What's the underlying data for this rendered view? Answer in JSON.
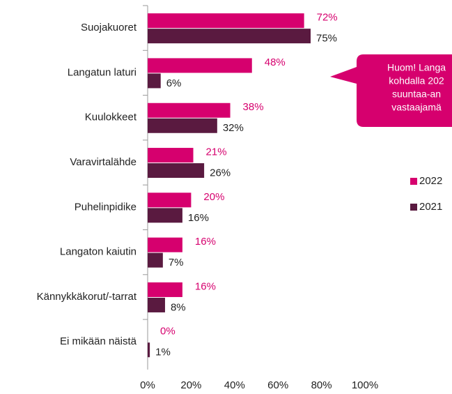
{
  "chart_data": {
    "type": "bar",
    "orientation": "horizontal",
    "categories": [
      "Suojakuoret",
      "Langatun laturi",
      "Kuulokkeet",
      "Varavirtalähde",
      "Puhelinpidike",
      "Langaton kaiutin",
      "Kännykkäkorut/-tarrat",
      "Ei mikään näistä"
    ],
    "series": [
      {
        "name": "2022",
        "color": "#d6006e",
        "values": [
          72,
          48,
          38,
          21,
          20,
          16,
          16,
          0
        ],
        "value_labels": [
          "72%",
          "48%",
          "38%",
          "21%",
          "20%",
          "16%",
          "16%",
          "0%"
        ]
      },
      {
        "name": "2021",
        "color": "#5a1a40",
        "values": [
          75,
          6,
          32,
          26,
          16,
          7,
          8,
          1
        ],
        "value_labels": [
          "75%",
          "6%",
          "32%",
          "26%",
          "16%",
          "7%",
          "8%",
          "1%"
        ]
      }
    ],
    "xlim": [
      0,
      100
    ],
    "xticks": [
      {
        "value": 0,
        "label": "0%"
      },
      {
        "value": 20,
        "label": "20%"
      },
      {
        "value": 40,
        "label": "40%"
      },
      {
        "value": 60,
        "label": "60%"
      },
      {
        "value": 80,
        "label": "80%"
      },
      {
        "value": 100,
        "label": "100%"
      }
    ],
    "legend": "right",
    "annotation": [
      "Huom! Langa",
      "kohdalla 202",
      "suuntaa-an",
      "vastaajamä"
    ]
  }
}
